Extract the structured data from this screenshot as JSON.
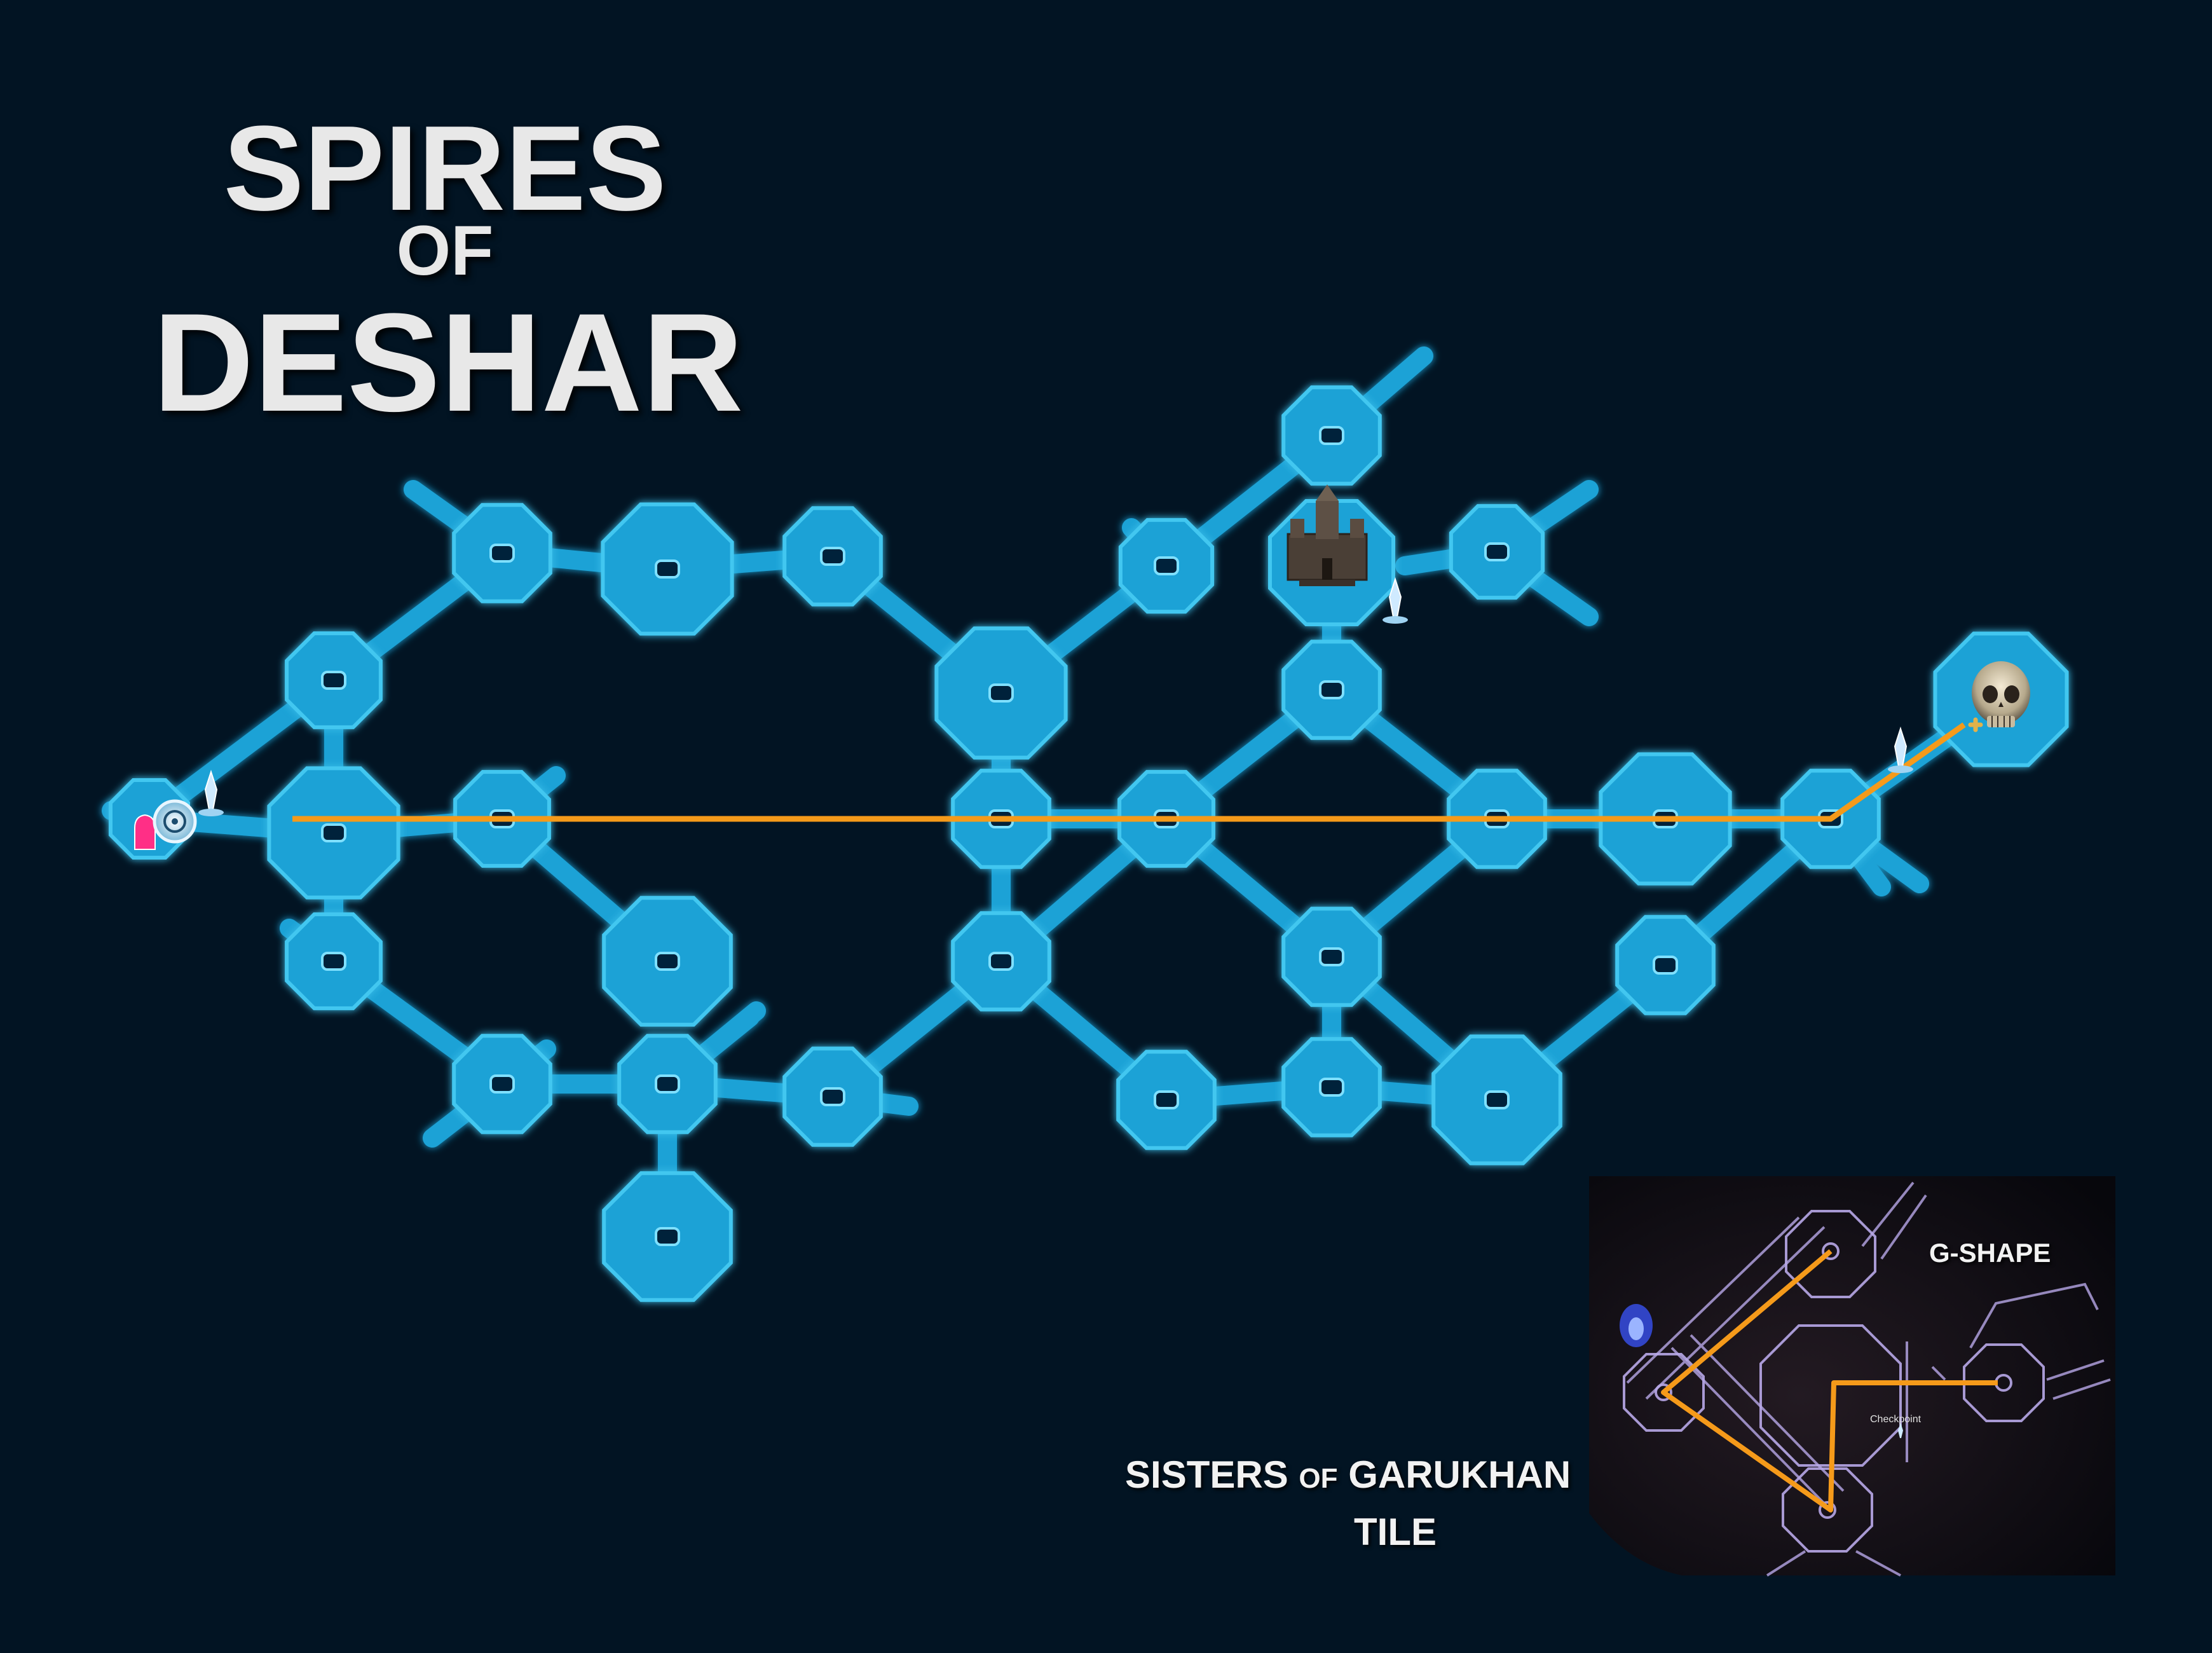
{
  "map": {
    "title_line1": "SPIRES",
    "title_line2": "OF",
    "title_line3": "DESHAR",
    "colors": {
      "background": "#021423",
      "room_fill": "#1fa2d6",
      "room_stroke": "#43c7f0",
      "route": "#f59a1a",
      "start_marker": "#ff2f86",
      "title": "#e8e8e8"
    },
    "icons": [
      "start-marker-icon",
      "waypoint-icon",
      "checkpoint-crystal-icon",
      "tower-boss-icon",
      "skull-boss-icon"
    ]
  },
  "inset": {
    "tile_name_part1": "SISTERS",
    "tile_name_of": "OF",
    "tile_name_part2": "GARUKHAN",
    "tile_word": "TILE",
    "shape_label": "G-SHAPE",
    "checkpoint_label": "Checkpoint"
  }
}
